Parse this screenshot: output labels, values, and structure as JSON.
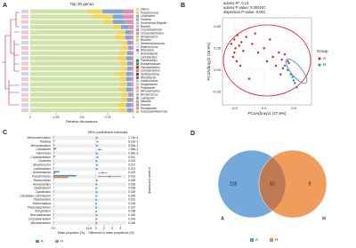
{
  "chart_data": [
    {
      "type": "stacked-bar",
      "label": "A",
      "title": "Top 30 genus",
      "x_label": "Relative Abundance",
      "xlim": [
        0,
        1
      ],
      "xticks": [
        0,
        0.25,
        0.5,
        0.75,
        1
      ],
      "categories": [
        null,
        null,
        null,
        null,
        null,
        null,
        null,
        null,
        null,
        null,
        null,
        null,
        null,
        null,
        null,
        null,
        null,
        null,
        null,
        null
      ],
      "series": [
        {
          "name": "Others",
          "color": "#cfe3a6",
          "values": [
            0.55,
            0.6,
            0.7,
            0.8,
            0.85,
            0.82,
            0.88,
            0.9,
            0.86,
            0.84,
            0.87,
            0.89,
            0.83,
            0.86,
            0.88,
            0.85,
            0.9,
            0.87,
            0.84,
            0.86
          ]
        },
        {
          "name": "Pseudomonas",
          "color": "#f2d35c",
          "values": [
            0.15,
            0.2,
            0.1,
            0.08,
            0.07,
            0.1,
            0.06,
            0.05,
            0.08,
            0.09,
            0.07,
            0.05,
            0.1,
            0.07,
            0.06,
            0.08,
            0.05,
            0.07,
            0.09,
            0.08
          ]
        },
        {
          "name": "Clavibacter",
          "color": "#7fa6d9",
          "values": [
            0.2,
            0.1,
            0.12,
            0.07,
            0.05,
            0.05,
            0.04,
            0.03,
            0.04,
            0.05,
            0.04,
            0.04,
            0.05,
            0.05,
            0.04,
            0.05,
            0.03,
            0.04,
            0.05,
            0.04
          ]
        },
        {
          "name": "Pantoea",
          "color": "#e58fb0",
          "values": [
            0.1,
            0.1,
            0.08,
            0.05,
            0.03,
            0.03,
            0.02,
            0.02,
            0.02,
            0.02,
            0.02,
            0.02,
            0.02,
            0.02,
            0.02,
            0.02,
            0.02,
            0.02,
            0.02,
            0.02
          ]
        }
      ],
      "legend_more": [
        {
          "name": "Escherichia-Shigella",
          "color": "#8dd3c7"
        },
        {
          "name": "Bacillus",
          "color": "#bebada"
        },
        {
          "name": "Corynebacterium",
          "color": "#fb8072"
        },
        {
          "name": "Chryseobacterium",
          "color": "#80b1d3"
        },
        {
          "name": "Streptomyces",
          "color": "#fdb462"
        },
        {
          "name": "Brucella",
          "color": "#b3de69"
        },
        {
          "name": "Stenotrophomonas",
          "color": "#fccde5"
        },
        {
          "name": "Enterococcus",
          "color": "#d9d9d9"
        },
        {
          "name": "Rhizobium",
          "color": "#bc80bd"
        },
        {
          "name": "Acinetobacter",
          "color": "#ccebc5"
        },
        {
          "name": "Lactobacillus",
          "color": "#ffed6f"
        },
        {
          "name": "Paenibacillus",
          "color": "#1f78b4"
        },
        {
          "name": "Bradyrhizobium",
          "color": "#33a02c"
        },
        {
          "name": "Flavobacterium",
          "color": "#e31a1c"
        },
        {
          "name": "Curtobacterium",
          "color": "#ff7f00"
        },
        {
          "name": "Sphingomonas",
          "color": "#6a3d9a"
        },
        {
          "name": "Arthrobacter",
          "color": "#b15928"
        },
        {
          "name": "Xanthomonas",
          "color": "#a6cee3"
        },
        {
          "name": "Sanguibacter",
          "color": "#b2df8a"
        },
        {
          "name": "Pedobacter",
          "color": "#fb9a99"
        },
        {
          "name": "Microbacterium",
          "color": "#fdbf6f"
        },
        {
          "name": "Rhodococcus",
          "color": "#cab2d6"
        },
        {
          "name": "Luteibacter",
          "color": "#66c2a5"
        },
        {
          "name": "Massilia",
          "color": "#fc8d62"
        },
        {
          "name": "Kocuria",
          "color": "#8da0cb"
        },
        {
          "name": "Rhodobacter",
          "color": "#e78ac3"
        },
        {
          "name": "Pseudoxanthomonas",
          "color": "#a6d854"
        }
      ]
    },
    {
      "type": "scatter",
      "label": "B",
      "x_label": "PCoA(bray)1 (47.8%)",
      "y_label": "PCoA(bray)2 (16.5%)",
      "annotations": [
        "adonis R²: 0.14",
        "adonis P-value: 0.000167",
        "dispersion P-value: 0.001"
      ],
      "legend_title": "Group",
      "xlim": [
        -0.7,
        0.8
      ],
      "xticks": [
        -0.5,
        {
          "value": 0,
          "label": "0.0"
        },
        0.5
      ],
      "ylim": [
        -0.4,
        0.6
      ],
      "yticks": [
        -0.25,
        {
          "value": 0,
          "label": "0.00"
        },
        0.25,
        {
          "value": 0.5,
          "label": "0.50"
        }
      ],
      "series": [
        {
          "name": "A",
          "color": "#e41a1c",
          "x": [
            -0.55,
            -0.5,
            -0.48,
            -0.45,
            -0.42,
            -0.5,
            -0.38,
            -0.35,
            -0.3,
            -0.52,
            -0.46,
            -0.4,
            -0.2,
            -0.1,
            0.0,
            0.05,
            0.1,
            0.15,
            0.2,
            0.25,
            0.3,
            0.32,
            0.35,
            0.28,
            -0.25,
            -0.15,
            0.4
          ],
          "values": [
            0.3,
            0.35,
            0.25,
            0.4,
            0.28,
            0.2,
            0.32,
            0.22,
            0.38,
            0.15,
            0.1,
            0.05,
            0.3,
            0.2,
            0.25,
            0.1,
            0.35,
            0.15,
            0.05,
            0.2,
            0.12,
            0.02,
            0.18,
            -0.05,
            -0.1,
            0.42,
            0.1
          ]
        },
        {
          "name": "H",
          "color": "#377eb8",
          "x": [
            0.35,
            0.4,
            0.45,
            0.5,
            0.55,
            0.42,
            0.48,
            0.52
          ],
          "values": [
            0.05,
            0.0,
            -0.05,
            -0.12,
            -0.2,
            0.08,
            -0.08,
            -0.15
          ]
        }
      ]
    },
    {
      "type": "extended-error-bar",
      "label": "C",
      "title": "95% confidence intervals",
      "x_label": "Mean proportion (%)",
      "x2_label": "Difference in mean proportions (%)",
      "p_label": "p-value (corrected)",
      "categories": [
        "Verrucomicrobium",
        "Pantoea",
        "Mesorhizobium",
        "Clavibacter",
        "Halomonas",
        "Curtobacterium",
        "Gordonia",
        "Streptomyces",
        "Lactobacillus",
        "Acinetobacter",
        "Pseudomonas",
        "Roseomonas",
        "Anoxybacillus",
        "Dyadobacter",
        "Cupriavidus",
        "Candidatus Liberibacter",
        "Paenibacillus",
        "Actinomadura",
        "Phenylobacterium",
        "Azospirillum",
        "Brevundimonas",
        "Corynebacterium",
        "Microbacterium"
      ],
      "xlim": [
        0,
        14.8
      ],
      "xticks": [
        {
          "value": 0,
          "label": "0.0"
        },
        14.8
      ],
      "x2lim": [
        -1,
        7
      ],
      "x2ticks": [
        0,
        2,
        4,
        6
      ],
      "series": [
        {
          "name": "A",
          "color": "#4e8fc8",
          "values": [
            0.3,
            0.5,
            0.4,
            1.2,
            0.3,
            0.6,
            0.2,
            0.4,
            0.3,
            2.5,
            9.5,
            0.3,
            0.2,
            0.2,
            0.3,
            0.2,
            0.2,
            0.1,
            0.2,
            0.2,
            0.3,
            0.2,
            0.2
          ]
        },
        {
          "name": "H",
          "color": "#e8843a",
          "values": [
            0.05,
            0.1,
            0.1,
            0.3,
            0.05,
            0.2,
            0.05,
            0.1,
            0.05,
            0.8,
            6.2,
            0.05,
            0.05,
            0.05,
            0.1,
            0.05,
            0.05,
            0.02,
            0.05,
            0.05,
            0.1,
            0.05,
            0.05
          ]
        }
      ],
      "differences": [
        0.25,
        0.4,
        0.3,
        0.9,
        0.25,
        0.4,
        0.15,
        0.3,
        0.25,
        1.7,
        3.3,
        0.25,
        0.15,
        0.15,
        0.2,
        0.15,
        0.15,
        0.08,
        0.15,
        0.15,
        0.2,
        0.15,
        0.15
      ],
      "errors": [
        0.15,
        0.25,
        0.2,
        0.6,
        0.15,
        0.3,
        0.1,
        0.25,
        0.2,
        1.2,
        2.8,
        0.2,
        0.12,
        0.12,
        0.15,
        0.12,
        0.12,
        0.07,
        0.13,
        0.13,
        0.18,
        0.13,
        0.14
      ],
      "p_values": [
        "1.74e-3",
        "5.23e-3",
        "5.83e-3",
        "7.58e-3",
        "9.94e-3",
        "0.011",
        "0.013",
        "0.017",
        "0.021",
        "0.022",
        "0.023",
        "0.025",
        "0.028",
        "0.028",
        "0.029",
        "0.030",
        "0.031",
        "0.034",
        "0.037",
        "0.038",
        "0.040",
        "0.043",
        "0.046"
      ],
      "diff_color": "#4e8fc8"
    },
    {
      "type": "venn",
      "label": "D",
      "sets": [
        {
          "name": "A",
          "color": "#5b9bd5"
        },
        {
          "name": "H",
          "color": "#ed8b3f"
        }
      ],
      "values": [
        218,
        62,
        9
      ]
    }
  ]
}
